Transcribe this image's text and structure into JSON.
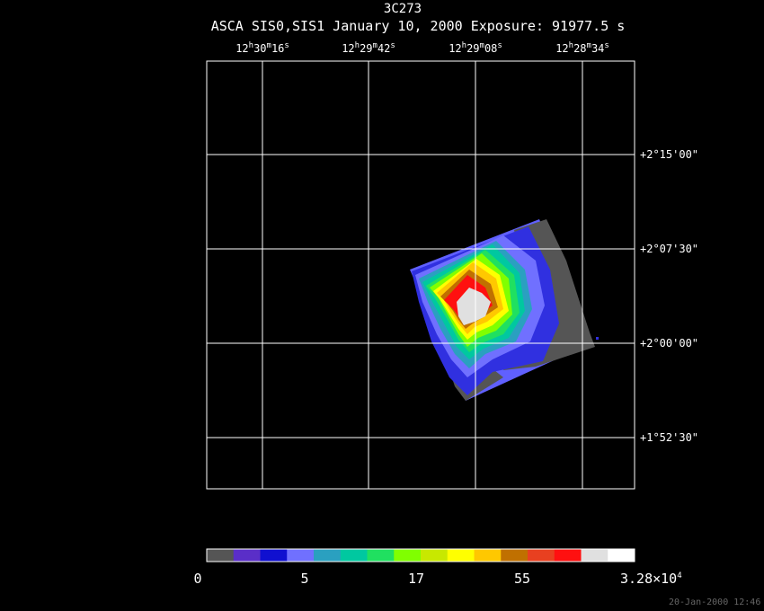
{
  "title": "3C273",
  "subtitle": "ASCA SIS0,SIS1 January 10, 2000 Exposure: 91977.5 s",
  "ra_labels": [
    {
      "h": "12",
      "m": "30",
      "s": "16"
    },
    {
      "h": "12",
      "m": "29",
      "s": "42"
    },
    {
      "h": "12",
      "m": "29",
      "s": "08"
    },
    {
      "h": "12",
      "m": "28",
      "s": "34"
    }
  ],
  "dec_labels": [
    "+2°15'00\"",
    "+2°07'30\"",
    "+2°00'00\"",
    "+1°52'30\""
  ],
  "colorbar": {
    "colors": [
      "#555555",
      "#5a2ec8",
      "#1010d0",
      "#7070ff",
      "#2aa0c0",
      "#00c8a0",
      "#20e060",
      "#80ff00",
      "#c8e800",
      "#ffff00",
      "#ffc800",
      "#c07000",
      "#e84020",
      "#ff1010",
      "#e0e0e0",
      "#ffffff"
    ],
    "tick_labels": [
      "0",
      "5",
      "17",
      "55",
      "3.28×10"
    ],
    "tick_exponent": "4"
  },
  "timestamp": "20-Jan-2000 12:46"
}
